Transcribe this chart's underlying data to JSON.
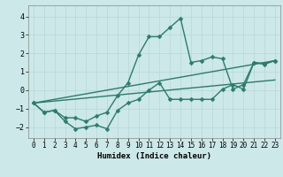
{
  "xlabel": "Humidex (Indice chaleur)",
  "ylabel": "",
  "background_color": "#cce8e8",
  "line_color": "#2d7a6e",
  "xlim": [
    -0.5,
    23.5
  ],
  "ylim": [
    -2.6,
    4.6
  ],
  "yticks": [
    -2,
    -1,
    0,
    1,
    2,
    3,
    4
  ],
  "xticks": [
    0,
    1,
    2,
    3,
    4,
    5,
    6,
    7,
    8,
    9,
    10,
    11,
    12,
    13,
    14,
    15,
    16,
    17,
    18,
    19,
    20,
    21,
    22,
    23
  ],
  "series": [
    {
      "x": [
        0,
        1,
        2,
        3,
        4,
        5,
        6,
        7,
        8,
        9,
        10,
        11,
        12,
        13,
        14,
        15,
        16,
        17,
        18,
        19,
        20,
        21,
        22,
        23
      ],
      "y": [
        -0.7,
        -1.2,
        -1.1,
        -1.7,
        -2.1,
        -2.0,
        -1.9,
        -2.1,
        -1.1,
        -0.7,
        -0.5,
        0.0,
        0.4,
        -0.5,
        -0.5,
        -0.5,
        -0.5,
        -0.5,
        0.05,
        0.3,
        0.05,
        1.5,
        1.45,
        1.6
      ],
      "with_markers": true
    },
    {
      "x": [
        0,
        1,
        2,
        3,
        4,
        5,
        6,
        7,
        8,
        9,
        10,
        11,
        12,
        13,
        14,
        15,
        16,
        17,
        18,
        19,
        20,
        21,
        22,
        23
      ],
      "y": [
        -0.7,
        -1.2,
        -1.1,
        -1.5,
        -1.5,
        -1.7,
        -1.4,
        -1.2,
        -0.3,
        0.4,
        1.9,
        2.9,
        2.9,
        3.4,
        3.9,
        1.5,
        1.6,
        1.8,
        1.7,
        0.05,
        0.3,
        1.5,
        1.4,
        1.6
      ],
      "with_markers": true
    },
    {
      "x": [
        0,
        23
      ],
      "y": [
        -0.7,
        1.6
      ],
      "with_markers": false
    },
    {
      "x": [
        0,
        23
      ],
      "y": [
        -0.7,
        0.55
      ],
      "with_markers": false
    }
  ],
  "grid_color": "#b8d8d8",
  "markersize": 2.5,
  "linewidth": 1.0,
  "xlabel_fontsize": 6.5,
  "tick_labelsize": 5.5
}
